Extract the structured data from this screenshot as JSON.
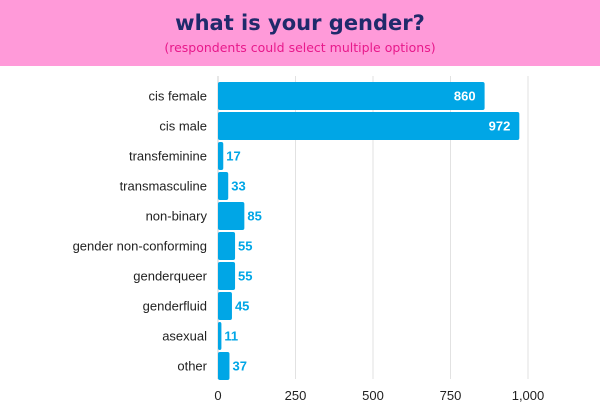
{
  "header": {
    "title": "what is your gender?",
    "subtitle": "(respondents could select multiple options)"
  },
  "chart_data": {
    "type": "bar",
    "orientation": "horizontal",
    "title": "what is your gender?",
    "subtitle": "(respondents could select multiple options)",
    "categories": [
      "cis female",
      "cis male",
      "transfeminine",
      "transmasculine",
      "non-binary",
      "gender non-conforming",
      "genderqueer",
      "genderfluid",
      "asexual",
      "other"
    ],
    "values": [
      860,
      972,
      17,
      33,
      85,
      55,
      55,
      45,
      11,
      37
    ],
    "value_labels": [
      "860",
      "972",
      "17",
      "33",
      "85",
      "55",
      "55",
      "45",
      "11",
      "37"
    ],
    "xlim": [
      0,
      1000
    ],
    "xticks": [
      0,
      250,
      500,
      750,
      1000
    ],
    "xtick_labels": [
      "0",
      "250",
      "500",
      "750",
      "1,000"
    ],
    "grid": true,
    "colors": {
      "bar": "#00a6e6",
      "label_inside": "#ffffff",
      "label_outside": "#00a6e6",
      "header_bg": "#ff9ad9",
      "title": "#1f2a6b",
      "subtitle": "#e8198b"
    }
  }
}
